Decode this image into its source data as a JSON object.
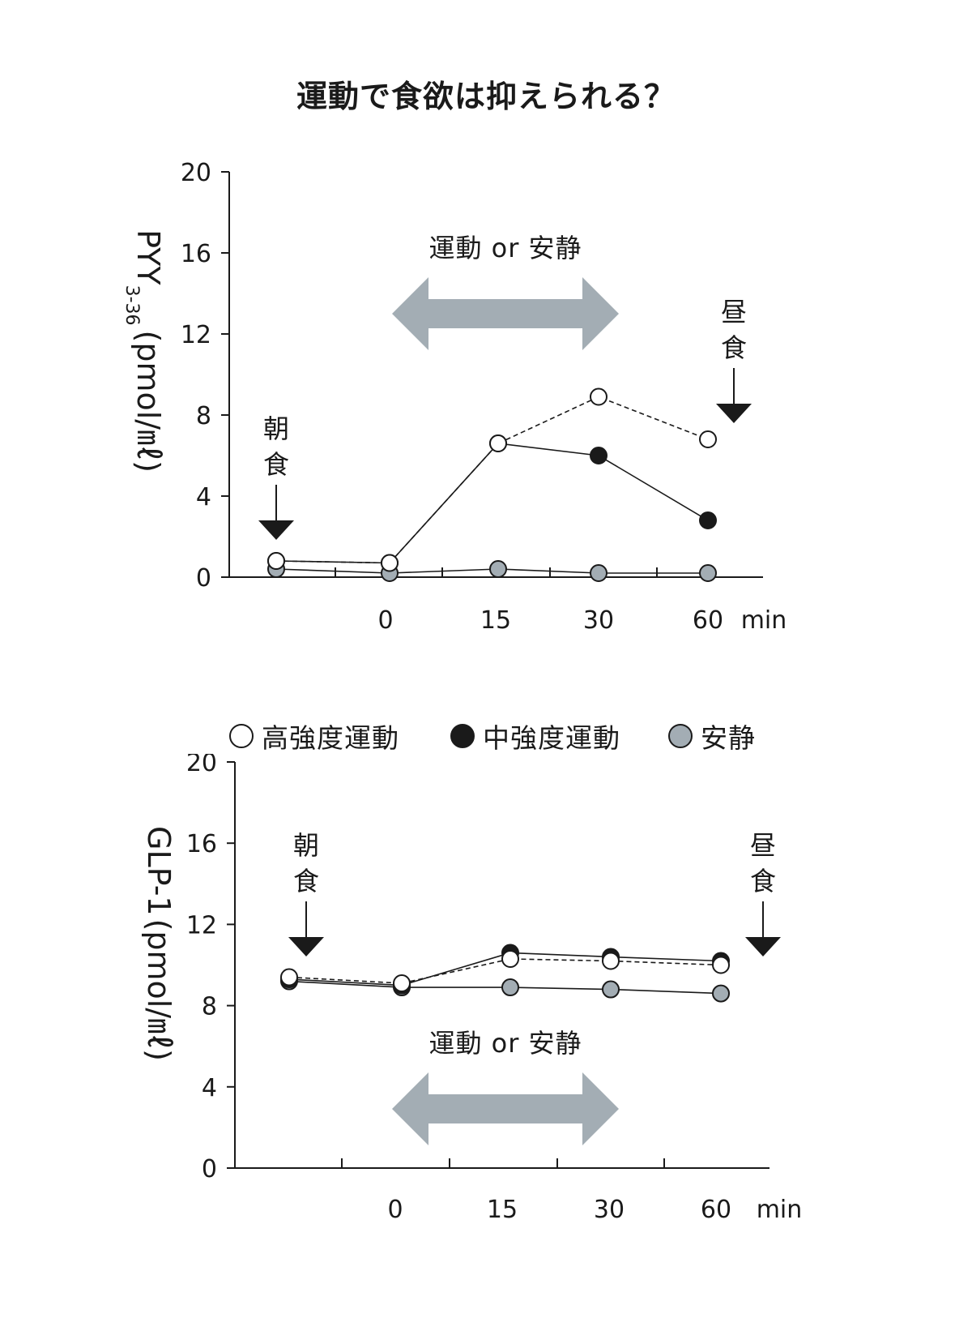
{
  "title": "運動で食欲は抑えられる？",
  "colors": {
    "ink": "#1a1a1a",
    "rest": "#a3adb4",
    "arrow": "#a3adb4",
    "background": "#ffffff"
  },
  "legend": [
    {
      "series": "high",
      "label": "高強度運動"
    },
    {
      "series": "moderate",
      "label": "中強度運動"
    },
    {
      "series": "rest",
      "label": "安静"
    }
  ],
  "chart_data": [
    {
      "type": "line",
      "id": "pyy",
      "ylabel_main": "PYY",
      "ylabel_sub": "3-36",
      "ylabel_unit": "(pmol/㎖)",
      "ylim": [
        0,
        20
      ],
      "yticks": [
        0,
        4,
        8,
        12,
        16,
        20
      ],
      "x_labels": [
        "0",
        "15",
        "30",
        "60"
      ],
      "x_unit": "min",
      "arrow_label": "運動 or 安静",
      "breakfast_label": [
        "朝",
        "食"
      ],
      "lunch_label": [
        "昼",
        "食"
      ],
      "series": [
        {
          "name": "high",
          "label": "高強度運動",
          "style": "dashed",
          "marker": "open",
          "values": [
            0.8,
            0.7,
            6.6,
            8.9,
            6.8
          ]
        },
        {
          "name": "moderate",
          "label": "中強度運動",
          "style": "solid",
          "marker": "filled",
          "values": [
            0.8,
            0.7,
            6.6,
            6.0,
            2.8
          ]
        },
        {
          "name": "rest",
          "label": "安静",
          "style": "solid",
          "marker": "gray",
          "values": [
            0.4,
            0.2,
            0.4,
            0.2,
            0.2
          ]
        }
      ]
    },
    {
      "type": "line",
      "id": "glp1",
      "ylabel_main": "GLP-1",
      "ylabel_unit": "(pmol/㎖)",
      "ylim": [
        0,
        20
      ],
      "yticks": [
        0,
        4,
        8,
        12,
        16,
        20
      ],
      "x_labels": [
        "0",
        "15",
        "30",
        "60"
      ],
      "x_unit": "min",
      "arrow_label": "運動 or 安静",
      "breakfast_label": [
        "朝",
        "食"
      ],
      "lunch_label": [
        "昼",
        "食"
      ],
      "series": [
        {
          "name": "high",
          "label": "高強度運動",
          "style": "dashed",
          "marker": "open",
          "values": [
            9.4,
            9.1,
            10.3,
            10.2,
            10.0
          ]
        },
        {
          "name": "moderate",
          "label": "中強度運動",
          "style": "solid",
          "marker": "filled",
          "values": [
            9.3,
            9.0,
            10.6,
            10.4,
            10.2
          ]
        },
        {
          "name": "rest",
          "label": "安静",
          "style": "solid",
          "marker": "gray",
          "values": [
            9.2,
            8.9,
            8.9,
            8.8,
            8.6
          ]
        }
      ]
    }
  ]
}
